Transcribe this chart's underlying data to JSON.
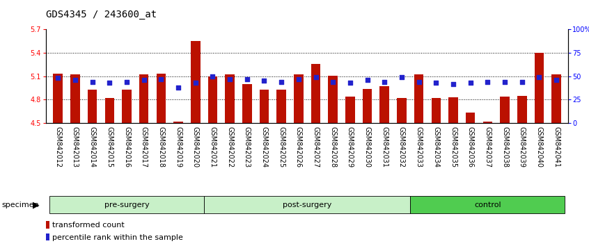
{
  "title": "GDS4345 / 243600_at",
  "samples": [
    "GSM842012",
    "GSM842013",
    "GSM842014",
    "GSM842015",
    "GSM842016",
    "GSM842017",
    "GSM842018",
    "GSM842019",
    "GSM842020",
    "GSM842021",
    "GSM842022",
    "GSM842023",
    "GSM842024",
    "GSM842025",
    "GSM842026",
    "GSM842027",
    "GSM842028",
    "GSM842029",
    "GSM842030",
    "GSM842031",
    "GSM842032",
    "GSM842033",
    "GSM842034",
    "GSM842035",
    "GSM842036",
    "GSM842037",
    "GSM842038",
    "GSM842039",
    "GSM842040",
    "GSM842041"
  ],
  "bar_values": [
    5.13,
    5.12,
    4.93,
    4.82,
    4.93,
    5.12,
    5.13,
    4.52,
    5.55,
    5.1,
    5.12,
    5.0,
    4.93,
    4.93,
    5.12,
    5.26,
    5.11,
    4.84,
    4.94,
    4.97,
    4.82,
    5.12,
    4.82,
    4.83,
    4.63,
    4.52,
    4.84,
    4.85,
    5.4,
    5.12
  ],
  "percentile_values": [
    48,
    46,
    44,
    43,
    44,
    46,
    47,
    38,
    43,
    50,
    47,
    47,
    45,
    44,
    47,
    49,
    44,
    43,
    46,
    44,
    49,
    44,
    43,
    42,
    43,
    44,
    44,
    44,
    49,
    46
  ],
  "groups": [
    {
      "label": "pre-surgery",
      "start": 0,
      "end": 9,
      "color": "#c8f0c8"
    },
    {
      "label": "post-surgery",
      "start": 9,
      "end": 21,
      "color": "#c8f0c8"
    },
    {
      "label": "control",
      "start": 21,
      "end": 30,
      "color": "#50cc50"
    }
  ],
  "bar_color": "#BB1100",
  "percentile_color": "#2222CC",
  "bar_bottom": 4.5,
  "ylim_left": [
    4.5,
    5.7
  ],
  "ylim_right": [
    0,
    100
  ],
  "yticks_left": [
    4.5,
    4.8,
    5.1,
    5.4,
    5.7
  ],
  "yticks_right": [
    0,
    25,
    50,
    75,
    100
  ],
  "ytick_labels_right": [
    "0",
    "25",
    "50",
    "75",
    "100%"
  ],
  "grid_values": [
    4.8,
    5.1,
    5.4
  ],
  "specimen_label": "specimen",
  "legend_bar": "transformed count",
  "legend_pct": "percentile rank within the sample",
  "title_fontsize": 10,
  "tick_fontsize": 7,
  "label_fontsize": 8,
  "group_fontsize": 8
}
